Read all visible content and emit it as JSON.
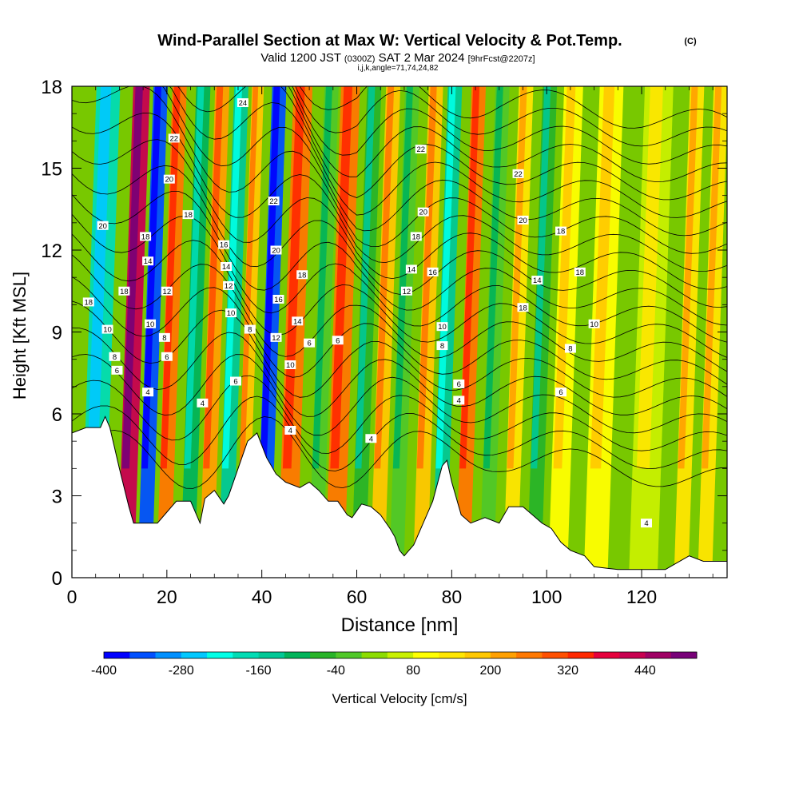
{
  "chart_data": {
    "type": "heatmap",
    "title": "Wind-Parallel Section at Max W: Vertical Velocity & Pot.Temp.",
    "title_mark": "(C)",
    "subtitle_main": "Valid 1200 JST",
    "subtitle_utc": "(0300Z)",
    "subtitle_date": "SAT 2 Mar 2024",
    "subtitle_fcst": "[9hrFcst@2207z]",
    "indices_line": "i,j,k,angle=71,74,24,82",
    "xlabel": "Distance [nm]",
    "ylabel": "Height [Kft MSL]",
    "xlim": [
      0,
      138
    ],
    "ylim": [
      0,
      18
    ],
    "x_ticks": [
      "0",
      "20",
      "40",
      "60",
      "80",
      "100",
      "120"
    ],
    "y_ticks": [
      "0",
      "3",
      "6",
      "9",
      "12",
      "15",
      "18"
    ],
    "colorbar": {
      "label": "Vertical Velocity [cm/s]",
      "min": -400,
      "max": 500,
      "step": 40,
      "tick_labels": [
        "-400",
        "-280",
        "-160",
        "-40",
        "80",
        "200",
        "320",
        "440"
      ],
      "colors": [
        "#0000ff",
        "#0050ff",
        "#0090ff",
        "#00c8ff",
        "#00ffe6",
        "#00dcb4",
        "#00c896",
        "#00b45a",
        "#28b428",
        "#50c828",
        "#8cdc00",
        "#c8f000",
        "#ffff00",
        "#ffe600",
        "#ffc800",
        "#ffa000",
        "#ff7800",
        "#ff5000",
        "#ff2800",
        "#e6003c",
        "#c80050",
        "#a00064",
        "#780078"
      ]
    },
    "velocity_bands_cm_s": [
      {
        "x": 6,
        "w": 5,
        "value": -180
      },
      {
        "x": 13,
        "w": 3.5,
        "value": 400
      },
      {
        "x": 17,
        "w": 3,
        "value": -360
      },
      {
        "x": 21,
        "w": 3,
        "value": 240
      },
      {
        "x": 26,
        "w": 3,
        "value": -120
      },
      {
        "x": 30,
        "w": 3,
        "value": 200
      },
      {
        "x": 34,
        "w": 3,
        "value": -160
      },
      {
        "x": 37.5,
        "w": 2.5,
        "value": 160
      },
      {
        "x": 42,
        "w": 3,
        "value": -360
      },
      {
        "x": 47,
        "w": 4,
        "value": 260
      },
      {
        "x": 53,
        "w": 3,
        "value": -40
      },
      {
        "x": 57,
        "w": 4,
        "value": 240
      },
      {
        "x": 62,
        "w": 3,
        "value": -60
      },
      {
        "x": 66,
        "w": 3,
        "value": 180
      },
      {
        "x": 70,
        "w": 3,
        "value": -40
      },
      {
        "x": 75,
        "w": 3,
        "value": 160
      },
      {
        "x": 79,
        "w": 3,
        "value": -150
      },
      {
        "x": 84,
        "w": 3,
        "value": 240
      },
      {
        "x": 89,
        "w": 3,
        "value": -40
      },
      {
        "x": 94,
        "w": 3,
        "value": 120
      },
      {
        "x": 99,
        "w": 3,
        "value": -60
      },
      {
        "x": 104,
        "w": 4,
        "value": 100
      },
      {
        "x": 112,
        "w": 5,
        "value": 90
      },
      {
        "x": 122,
        "w": 6,
        "value": 40
      },
      {
        "x": 130,
        "w": 3,
        "value": 120
      },
      {
        "x": 135,
        "w": 3,
        "value": 120
      }
    ],
    "terrain_kft": [
      [
        0,
        5.3
      ],
      [
        3,
        5.5
      ],
      [
        6,
        5.5
      ],
      [
        7,
        5.9
      ],
      [
        8,
        5.5
      ],
      [
        10,
        4.0
      ],
      [
        12,
        2.6
      ],
      [
        13,
        2.0
      ],
      [
        18,
        2.0
      ],
      [
        20,
        2.4
      ],
      [
        22,
        2.8
      ],
      [
        25,
        2.8
      ],
      [
        27,
        2.0
      ],
      [
        28,
        2.9
      ],
      [
        30,
        3.2
      ],
      [
        32,
        2.7
      ],
      [
        33,
        3.0
      ],
      [
        35,
        4.0
      ],
      [
        37,
        5.0
      ],
      [
        39,
        5.3
      ],
      [
        41,
        4.4
      ],
      [
        43,
        3.8
      ],
      [
        45,
        3.5
      ],
      [
        48,
        3.3
      ],
      [
        50,
        3.5
      ],
      [
        52,
        3.2
      ],
      [
        54,
        2.8
      ],
      [
        56,
        2.8
      ],
      [
        58,
        2.3
      ],
      [
        59,
        2.2
      ],
      [
        61,
        2.7
      ],
      [
        63,
        2.6
      ],
      [
        65,
        2.3
      ],
      [
        67,
        1.8
      ],
      [
        68,
        1.5
      ],
      [
        69,
        1.0
      ],
      [
        70,
        0.8
      ],
      [
        72,
        1.2
      ],
      [
        74,
        2.0
      ],
      [
        76,
        2.8
      ],
      [
        78,
        4.1
      ],
      [
        79,
        4.3
      ],
      [
        80,
        3.5
      ],
      [
        82,
        2.3
      ],
      [
        84,
        2.0
      ],
      [
        87,
        2.2
      ],
      [
        90,
        2.0
      ],
      [
        92,
        2.6
      ],
      [
        95,
        2.6
      ],
      [
        97,
        2.3
      ],
      [
        99,
        2.0
      ],
      [
        101,
        1.8
      ],
      [
        103,
        1.3
      ],
      [
        105,
        1.0
      ],
      [
        108,
        0.8
      ],
      [
        110,
        0.4
      ],
      [
        115,
        0.3
      ],
      [
        120,
        0.3
      ],
      [
        125,
        0.3
      ],
      [
        127,
        0.5
      ],
      [
        130,
        0.8
      ],
      [
        133,
        0.6
      ],
      [
        135,
        0.6
      ],
      [
        138,
        0.6
      ]
    ],
    "theta_contour_labels": [
      {
        "text": "24",
        "x": 36,
        "y": 17.4
      },
      {
        "text": "22",
        "x": 21.5,
        "y": 16.1
      },
      {
        "text": "22",
        "x": 42.5,
        "y": 13.8
      },
      {
        "text": "22",
        "x": 73.5,
        "y": 15.7
      },
      {
        "text": "22",
        "x": 94,
        "y": 14.8
      },
      {
        "text": "20",
        "x": 6.5,
        "y": 12.9
      },
      {
        "text": "20",
        "x": 20.5,
        "y": 14.6
      },
      {
        "text": "20",
        "x": 43,
        "y": 12.0
      },
      {
        "text": "20",
        "x": 74,
        "y": 13.4
      },
      {
        "text": "20",
        "x": 95,
        "y": 13.1
      },
      {
        "text": "18",
        "x": 3.5,
        "y": 10.1
      },
      {
        "text": "18",
        "x": 11,
        "y": 10.5
      },
      {
        "text": "18",
        "x": 24.5,
        "y": 13.3
      },
      {
        "text": "18",
        "x": 15.5,
        "y": 12.5
      },
      {
        "text": "18",
        "x": 48.5,
        "y": 11.1
      },
      {
        "text": "18",
        "x": 72.5,
        "y": 12.5
      },
      {
        "text": "18",
        "x": 103,
        "y": 12.7
      },
      {
        "text": "18",
        "x": 95,
        "y": 9.9
      },
      {
        "text": "18",
        "x": 107,
        "y": 11.2
      },
      {
        "text": "16",
        "x": 32,
        "y": 12.2
      },
      {
        "text": "16",
        "x": 43.5,
        "y": 10.2
      },
      {
        "text": "16",
        "x": 76,
        "y": 11.2
      },
      {
        "text": "14",
        "x": 16,
        "y": 11.6
      },
      {
        "text": "14",
        "x": 32.5,
        "y": 11.4
      },
      {
        "text": "14",
        "x": 47.5,
        "y": 9.4
      },
      {
        "text": "14",
        "x": 71.5,
        "y": 11.3
      },
      {
        "text": "14",
        "x": 98,
        "y": 10.9
      },
      {
        "text": "12",
        "x": 20,
        "y": 10.5
      },
      {
        "text": "12",
        "x": 33,
        "y": 10.7
      },
      {
        "text": "12",
        "x": 43,
        "y": 8.8
      },
      {
        "text": "12",
        "x": 70.5,
        "y": 10.5
      },
      {
        "text": "10",
        "x": 7.5,
        "y": 9.1
      },
      {
        "text": "10",
        "x": 16.5,
        "y": 9.3
      },
      {
        "text": "10",
        "x": 33.5,
        "y": 9.7
      },
      {
        "text": "10",
        "x": 46,
        "y": 7.8
      },
      {
        "text": "10",
        "x": 78,
        "y": 9.2
      },
      {
        "text": "10",
        "x": 110,
        "y": 9.3
      },
      {
        "text": "8",
        "x": 9,
        "y": 8.1
      },
      {
        "text": "8",
        "x": 19.5,
        "y": 8.8
      },
      {
        "text": "8",
        "x": 37.5,
        "y": 9.1
      },
      {
        "text": "8",
        "x": 78,
        "y": 8.5
      },
      {
        "text": "8",
        "x": 105,
        "y": 8.4
      },
      {
        "text": "6",
        "x": 9.5,
        "y": 7.6
      },
      {
        "text": "6",
        "x": 20,
        "y": 8.1
      },
      {
        "text": "6",
        "x": 34.5,
        "y": 7.2
      },
      {
        "text": "6",
        "x": 50,
        "y": 8.6
      },
      {
        "text": "6",
        "x": 56,
        "y": 8.7
      },
      {
        "text": "6",
        "x": 81.5,
        "y": 7.1
      },
      {
        "text": "6",
        "x": 103,
        "y": 6.8
      },
      {
        "text": "4",
        "x": 16,
        "y": 6.8
      },
      {
        "text": "4",
        "x": 27.5,
        "y": 6.4
      },
      {
        "text": "4",
        "x": 46,
        "y": 5.4
      },
      {
        "text": "4",
        "x": 63,
        "y": 5.1
      },
      {
        "text": "4",
        "x": 81.5,
        "y": 6.5
      },
      {
        "text": "4",
        "x": 121,
        "y": 2.0
      }
    ]
  }
}
